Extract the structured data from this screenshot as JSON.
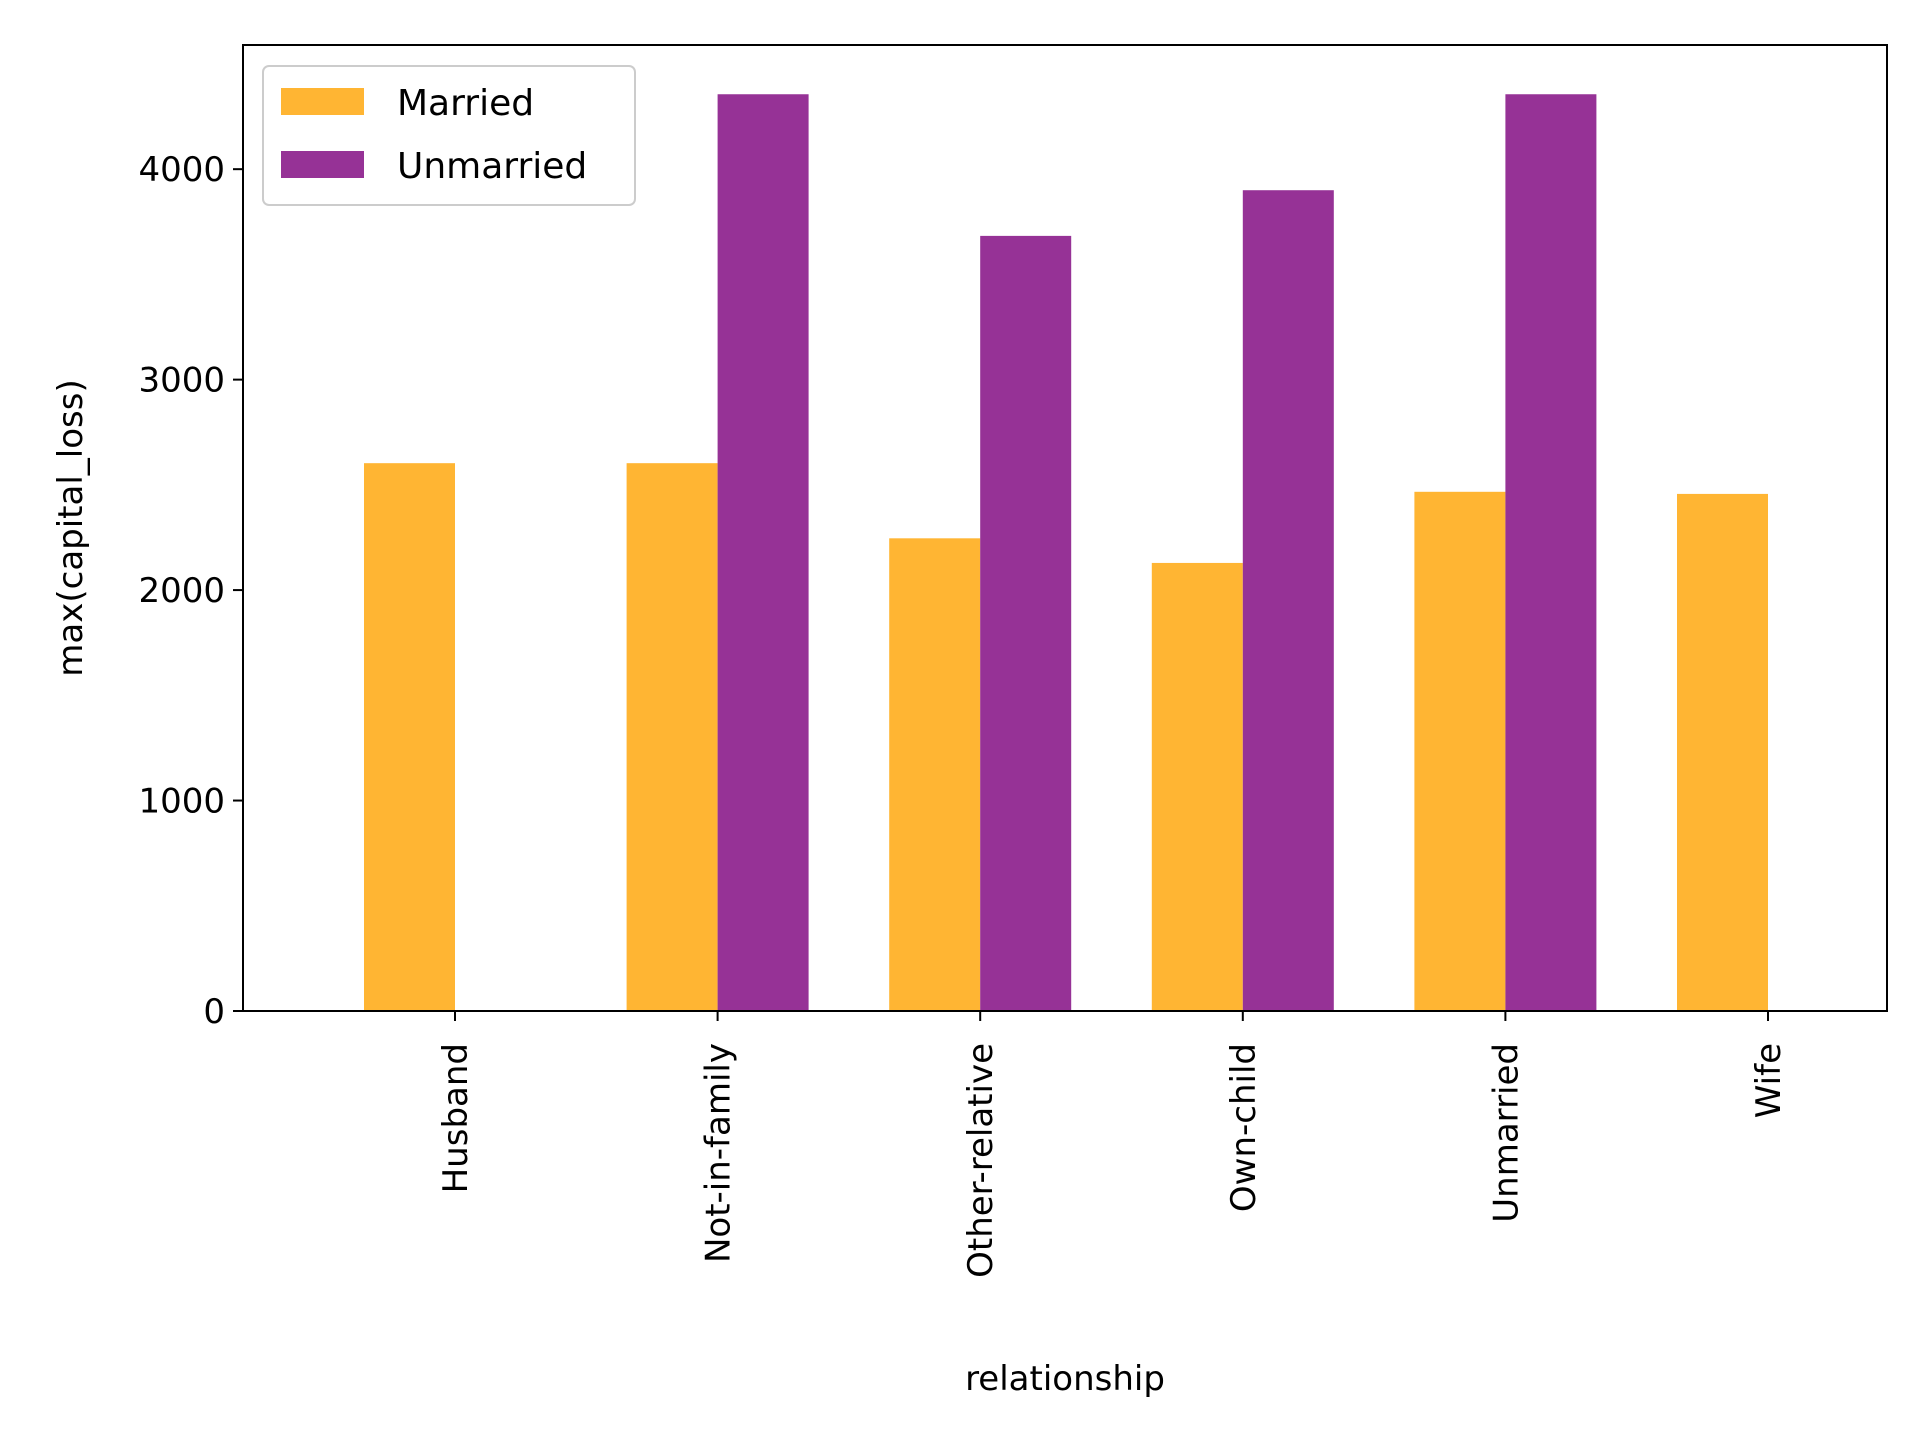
{
  "chart_data": {
    "type": "bar",
    "title": "",
    "xlabel": "relationship",
    "ylabel": "max(capital_loss)",
    "categories": [
      "Husband",
      "Not-in-family",
      "Other-relative",
      "Own-child",
      "Unmarried",
      "Wife"
    ],
    "series": [
      {
        "name": "Married",
        "color": "#FFB533",
        "values": [
          2603,
          2603,
          2246,
          2129,
          2467,
          2457
        ]
      },
      {
        "name": "Unmarried",
        "color": "#963296",
        "values": [
          0,
          4356,
          3683,
          3900,
          4356,
          0
        ]
      }
    ],
    "ylim": [
      0,
      4590
    ],
    "yticks": [
      0,
      1000,
      2000,
      3000,
      4000
    ],
    "grid": false,
    "legend": "top-left"
  }
}
